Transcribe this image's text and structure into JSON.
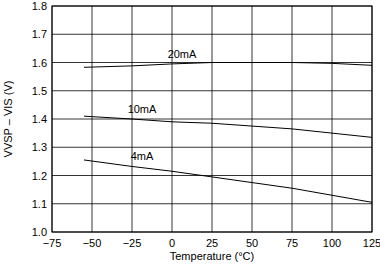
{
  "chart_data": {
    "type": "line",
    "x_label": "Temperature (°C)",
    "y_label": "VVSP – VIS (V)",
    "x": [
      -55,
      -25,
      0,
      25,
      50,
      75,
      100,
      125
    ],
    "series": [
      {
        "name": "20mA",
        "color": "#000000",
        "values": [
          1.583,
          1.588,
          1.595,
          1.6,
          1.6,
          1.6,
          1.597,
          1.59
        ]
      },
      {
        "name": "10mA",
        "color": "#000000",
        "values": [
          1.41,
          1.4,
          1.39,
          1.385,
          1.375,
          1.365,
          1.35,
          1.335
        ]
      },
      {
        "name": "4mA",
        "color": "#000000",
        "values": [
          1.255,
          1.232,
          1.215,
          1.195,
          1.175,
          1.155,
          1.13,
          1.105
        ]
      }
    ],
    "xlim": [
      -75,
      125
    ],
    "xticks": [
      {
        "value": -75,
        "label": "−75"
      },
      {
        "value": -50,
        "label": "−50"
      },
      {
        "value": -25,
        "label": "−25"
      },
      0,
      25,
      50,
      75,
      100,
      125
    ],
    "ylim": [
      1,
      1.8
    ],
    "yticks": [
      {
        "value": 1,
        "label": "1.0"
      },
      1.1,
      1.2,
      1.3,
      1.4,
      1.5,
      1.6,
      1.7,
      1.8
    ],
    "grid": true
  }
}
